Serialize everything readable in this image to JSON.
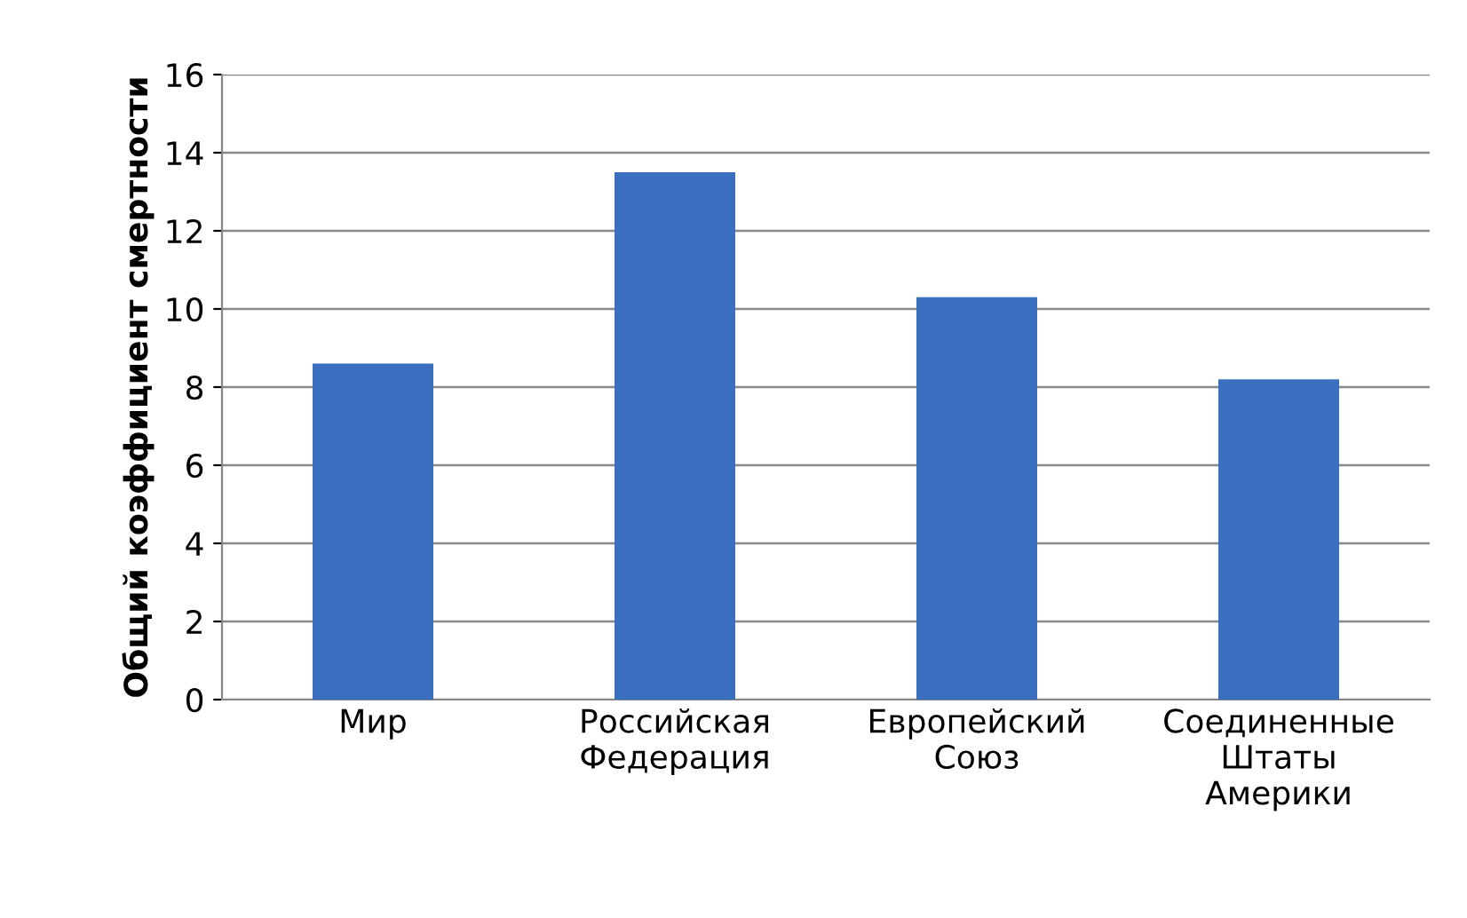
{
  "chart_data": {
    "type": "bar",
    "ylabel": "Общий коэффициент смертности",
    "categories": [
      "Мир",
      "Российская\nФедерация",
      "Европейский\nСоюз",
      "Соединенные\nШтаты\nАмерики"
    ],
    "values": [
      8.6,
      13.5,
      10.3,
      8.2
    ],
    "color": "#3a6fbf",
    "ylim": [
      0,
      16
    ],
    "yticks": [
      0,
      2,
      4,
      6,
      8,
      10,
      12,
      14,
      16
    ],
    "grid": "y",
    "legend": false
  }
}
